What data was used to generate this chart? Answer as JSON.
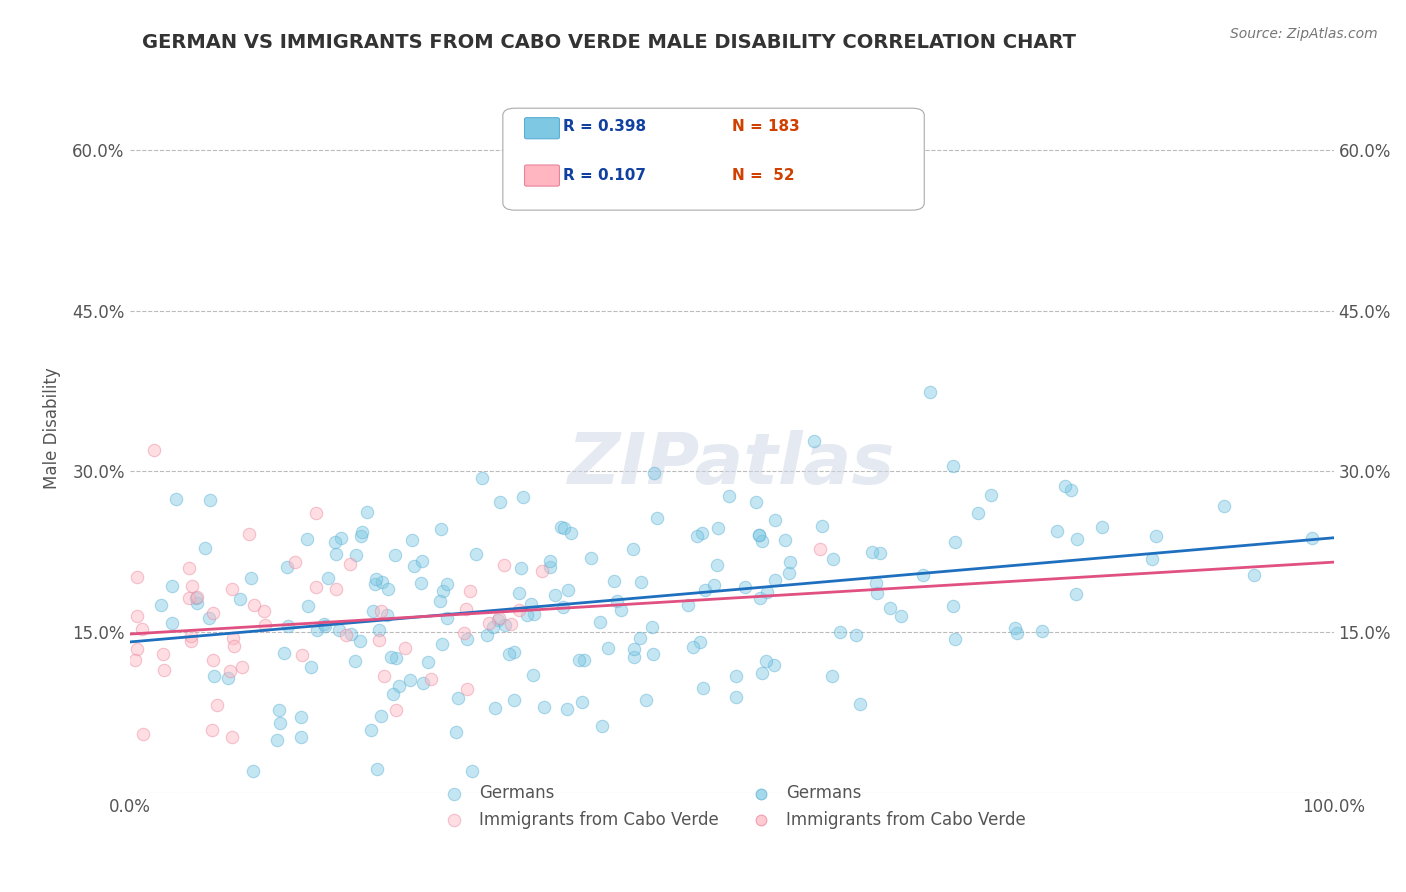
{
  "title": "GERMAN VS IMMIGRANTS FROM CABO VERDE MALE DISABILITY CORRELATION CHART",
  "source_text": "Source: ZipAtlas.com",
  "ylabel": "Male Disability",
  "xlabel": "",
  "watermark": "ZIPatlas",
  "xlim": [
    0,
    1.0
  ],
  "ylim": [
    0,
    0.68
  ],
  "xticks": [
    0.0,
    0.25,
    0.5,
    0.75,
    1.0
  ],
  "xticklabels": [
    "0.0%",
    "",
    "",
    "",
    "100.0%"
  ],
  "yticks": [
    0.0,
    0.15,
    0.3,
    0.45,
    0.6
  ],
  "yticklabels": [
    "",
    "15.0%",
    "30.0%",
    "45.0%",
    "60.0%"
  ],
  "german_color": "#7EC8E3",
  "caboverde_color": "#FFB6C1",
  "german_edge_color": "#5AAFD4",
  "caboverde_edge_color": "#E8829A",
  "line_german_color": "#1F6FBF",
  "line_caboverde_color": "#E05080",
  "R_german": 0.398,
  "N_german": 183,
  "R_caboverde": 0.107,
  "N_caboverde": 52,
  "legend_R_color": "#1040A0",
  "legend_N_color": "#D04000",
  "background_color": "#FFFFFF",
  "grid_color": "#BBBBBB",
  "title_color": "#333333",
  "german_seed": 42,
  "caboverde_seed": 7,
  "marker_size": 80,
  "marker_alpha": 0.45
}
